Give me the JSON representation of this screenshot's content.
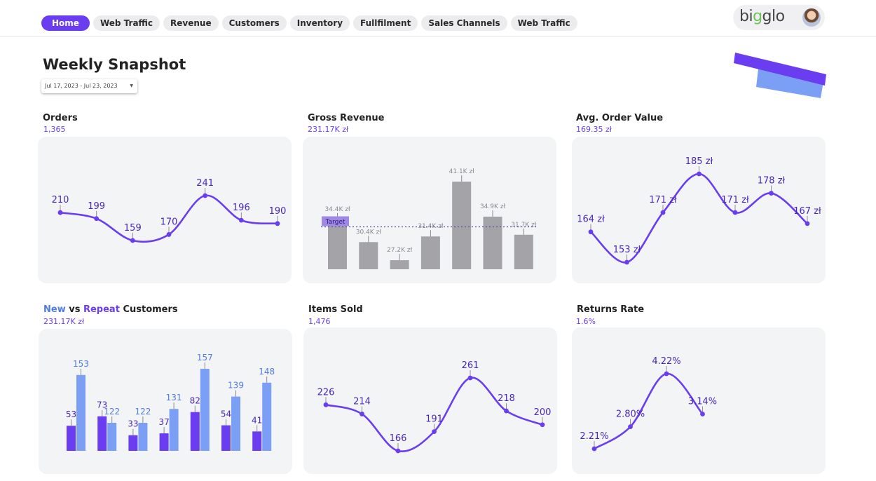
{
  "nav": {
    "tabs": [
      {
        "label": "Home",
        "active": true
      },
      {
        "label": "Web Traffic",
        "active": false
      },
      {
        "label": "Revenue",
        "active": false
      },
      {
        "label": "Customers",
        "active": false
      },
      {
        "label": "Inventory",
        "active": false
      },
      {
        "label": "Fullfilment",
        "active": false
      },
      {
        "label": "Sales Channels",
        "active": false
      },
      {
        "label": "Web Traffic",
        "active": false
      }
    ]
  },
  "brand": {
    "name_prefix": "bi",
    "name_accent": "g",
    "name_suffix": "glo",
    "avatar_icon": "user-avatar"
  },
  "header": {
    "title": "Weekly Snapshot",
    "date_range": "Jul 17, 2023 - Jul 23, 2023"
  },
  "colors": {
    "accent": "#6a3ef0",
    "accent_light": "#7b9ff5",
    "bar_gray": "#a3a3a8",
    "panel_bg": "#f3f4f6"
  },
  "cards": {
    "orders": {
      "title": "Orders",
      "metric": "1,365"
    },
    "gross_revenue": {
      "title": "Gross Revenue",
      "metric": "231.17K zł",
      "target_label": "Target"
    },
    "avg_order_value": {
      "title": "Avg. Order Value",
      "metric": "169.35 zł"
    },
    "customers": {
      "title_new": "New",
      "title_vs": " vs ",
      "title_repeat": "Repeat",
      "title_rest": " Customers",
      "metric": "231.17K zł"
    },
    "items_sold": {
      "title": "Items Sold",
      "metric": "1,476"
    },
    "returns_rate": {
      "title": "Returns Rate",
      "metric": "1.6%"
    }
  },
  "chart_data": [
    {
      "id": "orders",
      "type": "line",
      "values": [
        210,
        199,
        159,
        170,
        241,
        196,
        190
      ],
      "labels": [
        "210",
        "199",
        "159",
        "170",
        "241",
        "196",
        "190"
      ]
    },
    {
      "id": "gross_revenue",
      "type": "bar",
      "values": [
        34.4,
        30.4,
        27.2,
        31.4,
        41.1,
        34.9,
        31.7
      ],
      "labels": [
        "34.4K zł",
        "30.4K zł",
        "27.2K zł",
        "31.4K zł",
        "41.1K zł",
        "34.9K zł",
        "31.7K zł"
      ],
      "target": 33.1,
      "target_label": "Target"
    },
    {
      "id": "avg_order_value",
      "type": "line",
      "values": [
        164,
        153,
        171,
        185,
        171,
        178,
        167
      ],
      "labels": [
        "164 zł",
        "153 zł",
        "171 zł",
        "185 zł",
        "171 zł",
        "178 zł",
        "167 zł"
      ]
    },
    {
      "id": "customers",
      "type": "bar",
      "series": [
        {
          "name": "New",
          "values": [
            53,
            73,
            33,
            37,
            82,
            54,
            41
          ]
        },
        {
          "name": "Repeat",
          "values": [
            153,
            122,
            122,
            131,
            157,
            139,
            148
          ]
        }
      ]
    },
    {
      "id": "items_sold",
      "type": "line",
      "values": [
        226,
        214,
        166,
        191,
        261,
        218,
        200
      ],
      "labels": [
        "226",
        "214",
        "166",
        "191",
        "261",
        "218",
        "200"
      ]
    },
    {
      "id": "returns_rate",
      "type": "line",
      "values": [
        2.21,
        2.8,
        4.22,
        3.14
      ],
      "labels": [
        "2.21%",
        "2.80%",
        "4.22%",
        "3.14%"
      ]
    }
  ]
}
